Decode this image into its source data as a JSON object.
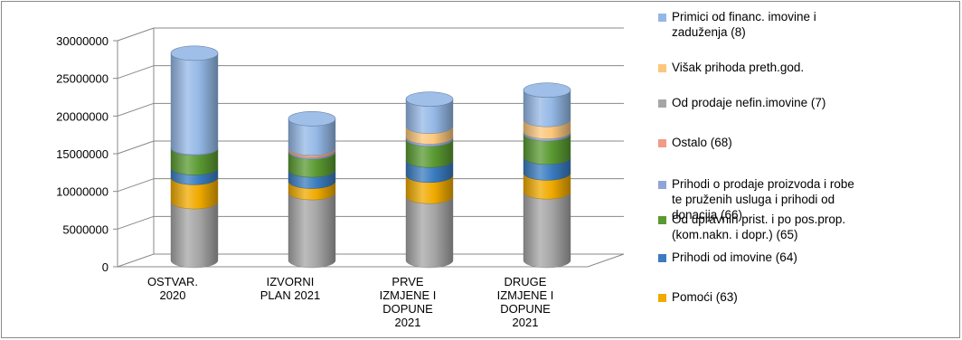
{
  "chart_data": {
    "type": "bar",
    "stacked": true,
    "style": "3d-cylinder",
    "title": "",
    "xlabel": "",
    "ylabel": "",
    "ylim": [
      0,
      30000000
    ],
    "yticks": [
      "30000000",
      "25000000",
      "20000000",
      "15000000",
      "10000000",
      "5000000",
      "0"
    ],
    "grid": true,
    "legend_position": "right",
    "categories": [
      "OSTVAR.\n2020",
      "IZVORNI\nPLAN 2021",
      "PRVE\nIZMJENE I\nDOPUNE\n2021",
      "DRUGE\nIZMJENE I\nDOPUNE\n2021"
    ],
    "series": [
      {
        "name": "Od prodaje nefin.imovine (7)",
        "color": "#a6a6a6",
        "values": [
          7800000,
          9000000,
          8500000,
          9100000
        ]
      },
      {
        "name": "Pomoći (63)",
        "color": "#f0aa00",
        "values": [
          3200000,
          1500000,
          2800000,
          2500000
        ]
      },
      {
        "name": "Prihodi od imovine (64)",
        "color": "#3a7cc0",
        "values": [
          1300000,
          1500000,
          2000000,
          2100000
        ]
      },
      {
        "name": "Od upravnih prist. i po pos.prop. (kom.nakn. i dopr.) (65)",
        "color": "#5a9a32",
        "values": [
          2600000,
          2400000,
          2800000,
          3100000
        ]
      },
      {
        "name": "Prihodi o prodaje proizvoda i robe te pruženih usluga i prihodi od donacija (66)",
        "color": "#8fa4d8",
        "values": [
          100000,
          200000,
          300000,
          300000
        ]
      },
      {
        "name": "Ostalo (68)",
        "color": "#f29a86",
        "values": [
          0,
          200000,
          0,
          0
        ]
      },
      {
        "name": "Višak prihoda preth.god.",
        "color": "#fbc77c",
        "values": [
          0,
          100000,
          1400000,
          1600000
        ]
      },
      {
        "name": "Primici od financ. imovine i zaduženja (8)",
        "color": "#94b8e6",
        "values": [
          12500000,
          3900000,
          3600000,
          3900000
        ]
      }
    ]
  },
  "legend": [
    {
      "label": "Primici od financ. imovine  i\nzaduženja (8)",
      "color": "#94b8e6"
    },
    {
      "label": "Višak prihoda preth.god.",
      "color": "#fbc77c"
    },
    {
      "label": "Od prodaje nefin.imovine (7)",
      "color": "#a6a6a6"
    },
    {
      "label": "Ostalo (68)",
      "color": "#f29a86"
    },
    {
      "label": "Prihodi o prodaje proizvoda i robe\nte pruženih usluga i prihodi od\ndonacija (66)",
      "color": "#8fa4d8"
    },
    {
      "label": "Od upravnih prist. i po pos.prop.\n(kom.nakn. i dopr.) (65)",
      "color": "#5a9a32"
    },
    {
      "label": "Prihodi od imovine (64)",
      "color": "#3a7cc0"
    },
    {
      "label": "Pomoći (63)",
      "color": "#f0aa00"
    }
  ]
}
